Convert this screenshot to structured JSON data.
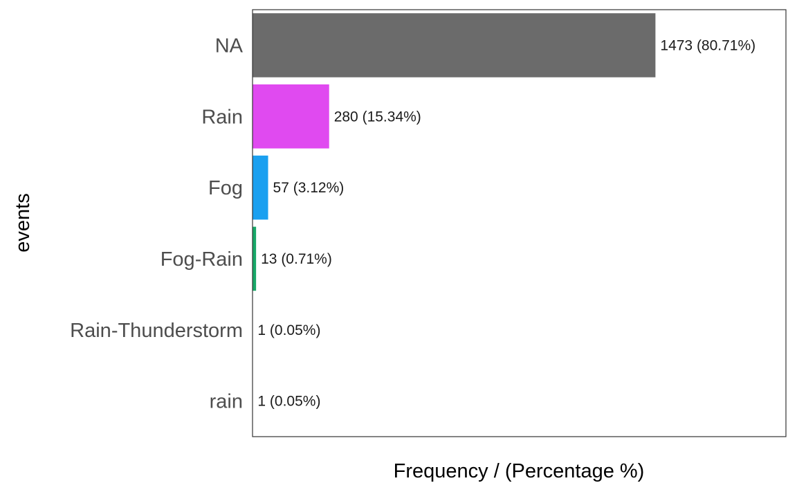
{
  "chart_data": {
    "type": "bar",
    "orientation": "horizontal",
    "title": "",
    "xlabel": "Frequency / (Percentage %)",
    "ylabel": "events",
    "xlim": [
      0,
      1950
    ],
    "grid": false,
    "legend": "none",
    "categories": [
      "NA",
      "Rain",
      "Fog",
      "Fog-Rain",
      "Rain-Thunderstorm",
      "rain"
    ],
    "values": [
      1473,
      280,
      57,
      13,
      1,
      1
    ],
    "percentages": [
      80.71,
      15.34,
      3.12,
      0.71,
      0.05,
      0.05
    ],
    "data_labels": [
      "1473 (80.71%)",
      "280 (15.34%)",
      "57 (3.12%)",
      "13 (0.71%)",
      "1 (0.05%)",
      "1 (0.05%)"
    ],
    "colors": [
      "#6b6b6b",
      "#e04af0",
      "#1aa0f0",
      "#18a868",
      "#b8a020",
      "#f06a60"
    ]
  }
}
